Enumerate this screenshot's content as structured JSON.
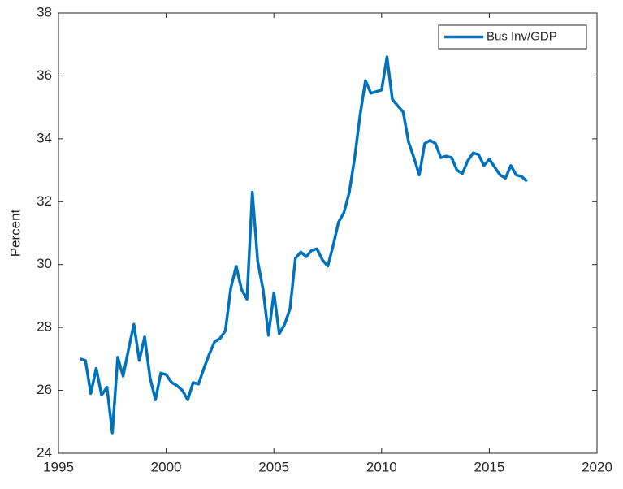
{
  "chart_data": {
    "type": "line",
    "ylabel": "Percent",
    "x": [
      1996,
      1996.25,
      1996.5,
      1996.75,
      1997,
      1997.25,
      1997.5,
      1997.75,
      1998,
      1998.25,
      1998.5,
      1998.75,
      1999,
      1999.25,
      1999.5,
      1999.75,
      2000,
      2000.25,
      2000.5,
      2000.75,
      2001,
      2001.25,
      2001.5,
      2001.75,
      2002,
      2002.25,
      2002.5,
      2002.75,
      2003,
      2003.25,
      2003.5,
      2003.75,
      2004,
      2004.25,
      2004.5,
      2004.75,
      2005,
      2005.25,
      2005.5,
      2005.75,
      2006,
      2006.25,
      2006.5,
      2006.75,
      2007,
      2007.25,
      2007.5,
      2007.75,
      2008,
      2008.25,
      2008.5,
      2008.75,
      2009,
      2009.25,
      2009.5,
      2009.75,
      2010,
      2010.25,
      2010.5,
      2010.75,
      2011,
      2011.25,
      2011.5,
      2011.75,
      2012,
      2012.25,
      2012.5,
      2012.75,
      2013,
      2013.25,
      2013.5,
      2013.75,
      2014,
      2014.25,
      2014.5,
      2014.75,
      2015,
      2015.25,
      2015.5,
      2015.75,
      2016,
      2016.25,
      2016.5,
      2016.75
    ],
    "series": [
      {
        "name": "Bus Inv/GDP",
        "color": "#0072BD",
        "values": [
          27.0,
          26.95,
          25.9,
          26.7,
          25.85,
          26.1,
          24.65,
          27.05,
          26.45,
          27.3,
          28.1,
          26.95,
          27.7,
          26.4,
          25.7,
          26.55,
          26.5,
          26.25,
          26.15,
          26.0,
          25.7,
          26.25,
          26.2,
          26.7,
          27.15,
          27.55,
          27.65,
          27.9,
          29.25,
          29.95,
          29.2,
          28.9,
          32.3,
          30.1,
          29.2,
          27.75,
          29.1,
          27.8,
          28.1,
          28.6,
          30.2,
          30.4,
          30.25,
          30.45,
          30.5,
          30.15,
          29.95,
          30.6,
          31.35,
          31.65,
          32.3,
          33.4,
          34.75,
          35.85,
          35.45,
          35.5,
          35.55,
          36.6,
          35.25,
          35.05,
          34.85,
          33.9,
          33.4,
          32.85,
          33.85,
          33.95,
          33.85,
          33.4,
          33.45,
          33.4,
          33.0,
          32.9,
          33.3,
          33.55,
          33.5,
          33.15,
          33.35,
          33.1,
          32.85,
          32.75,
          33.15,
          32.85,
          32.8,
          32.65
        ]
      }
    ],
    "xlim": [
      1995,
      2020
    ],
    "xticks": [
      1995,
      2000,
      2005,
      2010,
      2015,
      2020
    ],
    "ylim": [
      24,
      38
    ],
    "yticks": [
      24,
      26,
      28,
      30,
      32,
      34,
      36,
      38
    ],
    "legend": "upper right",
    "grid": false
  }
}
